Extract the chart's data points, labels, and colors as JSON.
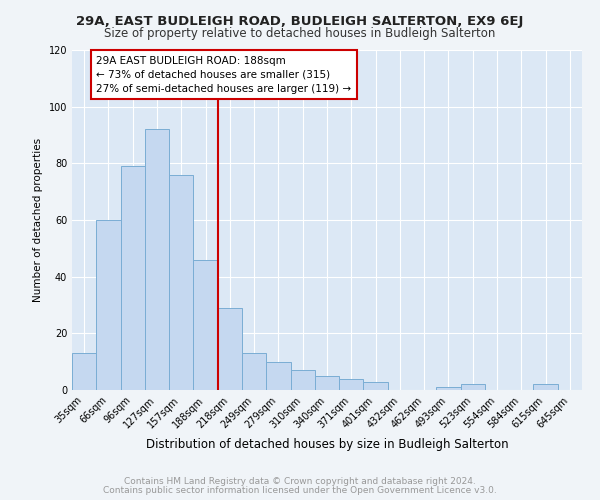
{
  "title": "29A, EAST BUDLEIGH ROAD, BUDLEIGH SALTERTON, EX9 6EJ",
  "subtitle": "Size of property relative to detached houses in Budleigh Salterton",
  "xlabel": "Distribution of detached houses by size in Budleigh Salterton",
  "ylabel": "Number of detached properties",
  "categories": [
    "35sqm",
    "66sqm",
    "96sqm",
    "127sqm",
    "157sqm",
    "188sqm",
    "218sqm",
    "249sqm",
    "279sqm",
    "310sqm",
    "340sqm",
    "371sqm",
    "401sqm",
    "432sqm",
    "462sqm",
    "493sqm",
    "523sqm",
    "554sqm",
    "584sqm",
    "615sqm",
    "645sqm"
  ],
  "values": [
    13,
    60,
    79,
    92,
    76,
    46,
    29,
    13,
    10,
    7,
    5,
    4,
    3,
    0,
    0,
    1,
    2,
    0,
    0,
    2,
    0
  ],
  "bar_color": "#c5d8f0",
  "bar_edge_color": "#7aadd4",
  "reference_line_color": "#cc0000",
  "annotation_text": "29A EAST BUDLEIGH ROAD: 188sqm\n← 73% of detached houses are smaller (315)\n27% of semi-detached houses are larger (119) →",
  "annotation_box_color": "#ffffff",
  "annotation_box_edge_color": "#cc0000",
  "ylim": [
    0,
    120
  ],
  "yticks": [
    0,
    20,
    40,
    60,
    80,
    100,
    120
  ],
  "background_color": "#dce8f5",
  "plot_bg_color": "#dce8f5",
  "grid_color": "#ffffff",
  "fig_bg_color": "#f0f4f8",
  "footer_line1": "Contains HM Land Registry data © Crown copyright and database right 2024.",
  "footer_line2": "Contains public sector information licensed under the Open Government Licence v3.0.",
  "title_fontsize": 9.5,
  "subtitle_fontsize": 8.5,
  "xlabel_fontsize": 8.5,
  "ylabel_fontsize": 7.5,
  "tick_fontsize": 7,
  "annotation_fontsize": 7.5,
  "footer_fontsize": 6.5
}
